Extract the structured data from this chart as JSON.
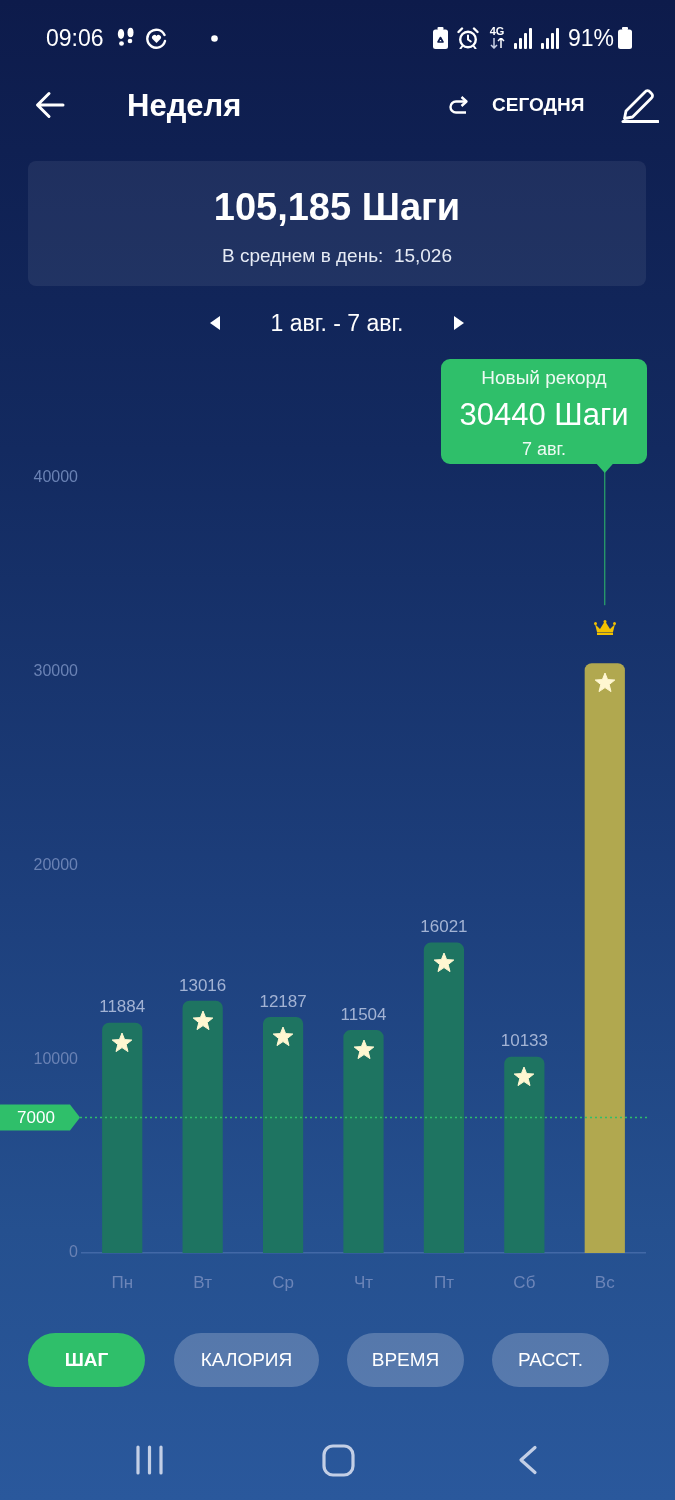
{
  "chart_data": {
    "type": "bar",
    "title": "105,185 Шаги",
    "subtitle": "В среднем в день:  15,026",
    "categories": [
      "Пн",
      "Вт",
      "Ср",
      "Чт",
      "Пт",
      "Сб",
      "Вс"
    ],
    "values": [
      11884,
      13016,
      12187,
      11504,
      16021,
      10133,
      30440
    ],
    "colors": [
      "#1e7461",
      "#1e7461",
      "#1e7461",
      "#1e7461",
      "#1e7461",
      "#1e7461",
      "#b1a84f"
    ],
    "value_labels": [
      "11884",
      "13016",
      "12187",
      "11504",
      "16021",
      "10133",
      null
    ],
    "ylim": [
      0,
      40000
    ],
    "yticks": [
      0,
      10000,
      20000,
      30000,
      40000
    ],
    "ref_lines": [
      {
        "axis": "y",
        "value": 7000,
        "label": "7000",
        "color": "#2fbf6a",
        "line_style": "dotted"
      }
    ],
    "annotations": [
      "09:06",
      "4G",
      "91%",
      "Неделя",
      "СЕГОДНЯ",
      "1 авг. - 7 авг.",
      "Новый рекорд",
      "30440 Шаги",
      "7 авг.",
      "ШАГ",
      "КАЛОРИЯ",
      "ВРЕМЯ",
      "РАССТ."
    ]
  }
}
